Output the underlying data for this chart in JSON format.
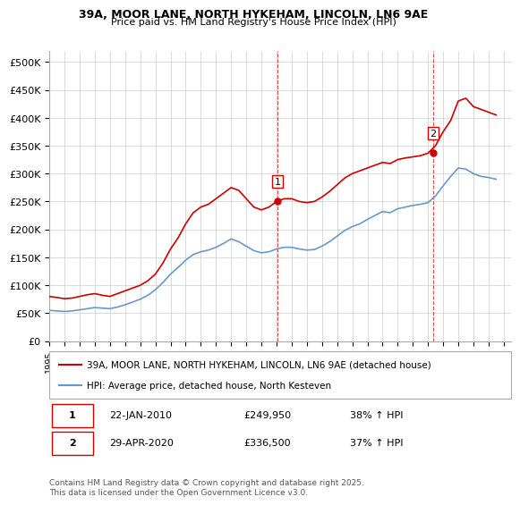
{
  "title": "39A, MOOR LANE, NORTH HYKEHAM, LINCOLN, LN6 9AE",
  "subtitle": "Price paid vs. HM Land Registry's House Price Index (HPI)",
  "ylabel_ticks": [
    "£0",
    "£50K",
    "£100K",
    "£150K",
    "£200K",
    "£250K",
    "£300K",
    "£350K",
    "£400K",
    "£450K",
    "£500K"
  ],
  "ytick_values": [
    0,
    50000,
    100000,
    150000,
    200000,
    250000,
    300000,
    350000,
    400000,
    450000,
    500000
  ],
  "ylim": [
    0,
    520000
  ],
  "xlim_start": 1995.0,
  "xlim_end": 2025.5,
  "red_line_color": "#cc0000",
  "blue_line_color": "#6699cc",
  "grid_color": "#cccccc",
  "bg_color": "#ffffff",
  "marker1_x": 2010.06,
  "marker1_y": 249950,
  "marker2_x": 2020.33,
  "marker2_y": 336500,
  "marker1_label": "1",
  "marker2_label": "2",
  "dashed_line_color": "#cc0000",
  "legend_label1": "39A, MOOR LANE, NORTH HYKEHAM, LINCOLN, LN6 9AE (detached house)",
  "legend_label2": "HPI: Average price, detached house, North Kesteven",
  "table_row1": [
    "1",
    "22-JAN-2010",
    "£249,950",
    "38% ↑ HPI"
  ],
  "table_row2": [
    "2",
    "29-APR-2020",
    "£336,500",
    "37% ↑ HPI"
  ],
  "footnote": "Contains HM Land Registry data © Crown copyright and database right 2025.\nThis data is licensed under the Open Government Licence v3.0.",
  "red_x": [
    1995.0,
    1995.5,
    1996.0,
    1996.5,
    1997.0,
    1997.5,
    1998.0,
    1998.5,
    1999.0,
    1999.5,
    2000.0,
    2000.5,
    2001.0,
    2001.5,
    2002.0,
    2002.5,
    2003.0,
    2003.5,
    2004.0,
    2004.5,
    2005.0,
    2005.5,
    2006.0,
    2006.5,
    2007.0,
    2007.5,
    2008.0,
    2008.5,
    2009.0,
    2009.5,
    2010.0,
    2010.5,
    2011.0,
    2011.5,
    2012.0,
    2012.5,
    2013.0,
    2013.5,
    2014.0,
    2014.5,
    2015.0,
    2015.5,
    2016.0,
    2016.5,
    2017.0,
    2017.5,
    2018.0,
    2018.5,
    2019.0,
    2019.5,
    2020.0,
    2020.5,
    2021.0,
    2021.5,
    2022.0,
    2022.5,
    2023.0,
    2023.5,
    2024.0,
    2024.5
  ],
  "red_y": [
    80000,
    78000,
    76000,
    77000,
    80000,
    83000,
    85000,
    82000,
    80000,
    85000,
    90000,
    95000,
    100000,
    108000,
    120000,
    140000,
    165000,
    185000,
    210000,
    230000,
    240000,
    245000,
    255000,
    265000,
    275000,
    270000,
    255000,
    240000,
    235000,
    240000,
    250000,
    255000,
    255000,
    250000,
    248000,
    250000,
    258000,
    268000,
    280000,
    292000,
    300000,
    305000,
    310000,
    315000,
    320000,
    318000,
    325000,
    328000,
    330000,
    332000,
    336500,
    350000,
    375000,
    395000,
    430000,
    435000,
    420000,
    415000,
    410000,
    405000
  ],
  "blue_x": [
    1995.0,
    1995.5,
    1996.0,
    1996.5,
    1997.0,
    1997.5,
    1998.0,
    1998.5,
    1999.0,
    1999.5,
    2000.0,
    2000.5,
    2001.0,
    2001.5,
    2002.0,
    2002.5,
    2003.0,
    2003.5,
    2004.0,
    2004.5,
    2005.0,
    2005.5,
    2006.0,
    2006.5,
    2007.0,
    2007.5,
    2008.0,
    2008.5,
    2009.0,
    2009.5,
    2010.0,
    2010.5,
    2011.0,
    2011.5,
    2012.0,
    2012.5,
    2013.0,
    2013.5,
    2014.0,
    2014.5,
    2015.0,
    2015.5,
    2016.0,
    2016.5,
    2017.0,
    2017.5,
    2018.0,
    2018.5,
    2019.0,
    2019.5,
    2020.0,
    2020.5,
    2021.0,
    2021.5,
    2022.0,
    2022.5,
    2023.0,
    2023.5,
    2024.0,
    2024.5
  ],
  "blue_y": [
    55000,
    54000,
    53000,
    54000,
    56000,
    58000,
    60000,
    59000,
    58000,
    61000,
    65000,
    70000,
    75000,
    82000,
    92000,
    105000,
    120000,
    132000,
    145000,
    155000,
    160000,
    163000,
    168000,
    175000,
    183000,
    178000,
    170000,
    162000,
    158000,
    160000,
    165000,
    168000,
    168000,
    165000,
    163000,
    164000,
    170000,
    178000,
    188000,
    198000,
    205000,
    210000,
    218000,
    225000,
    232000,
    230000,
    237000,
    240000,
    243000,
    245000,
    248000,
    260000,
    278000,
    295000,
    310000,
    308000,
    300000,
    295000,
    293000,
    290000
  ]
}
